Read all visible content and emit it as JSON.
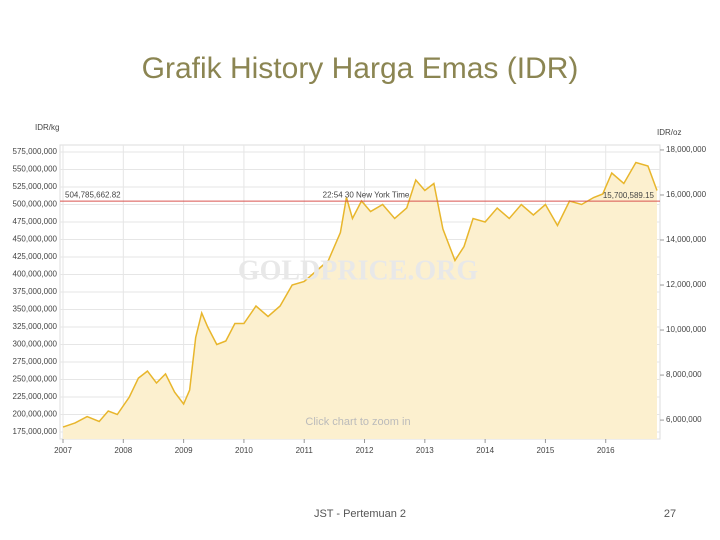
{
  "chart_data": {
    "type": "line",
    "title": "Grafik History Harga Emas (IDR)",
    "y_label": "IDR/kg",
    "y2_label": "IDR/oz",
    "watermark": "GOLDPRICE.ORG",
    "hint": "Click chart to zoom in",
    "current_price": {
      "value": 504785662.82,
      "label": "504,785,662.82"
    },
    "current_price_oz": {
      "value": 15700589.15,
      "label": "15,700,589.15"
    },
    "current_time": "22:54 30 New York Time",
    "current_color": "#d9534f",
    "x": [
      2007.0,
      2007.2,
      2007.4,
      2007.6,
      2007.75,
      2007.9,
      2008.1,
      2008.25,
      2008.4,
      2008.55,
      2008.7,
      2008.85,
      2009.0,
      2009.1,
      2009.2,
      2009.3,
      2009.4,
      2009.55,
      2009.7,
      2009.85,
      2010.0,
      2010.2,
      2010.4,
      2010.6,
      2010.8,
      2011.0,
      2011.2,
      2011.4,
      2011.6,
      2011.7,
      2011.8,
      2011.95,
      2012.1,
      2012.3,
      2012.5,
      2012.7,
      2012.85,
      2013.0,
      2013.15,
      2013.3,
      2013.5,
      2013.65,
      2013.8,
      2014.0,
      2014.2,
      2014.4,
      2014.6,
      2014.8,
      2015.0,
      2015.2,
      2015.4,
      2015.6,
      2015.8,
      2015.95,
      2016.1,
      2016.3,
      2016.5,
      2016.7,
      2016.85
    ],
    "series": [
      {
        "color": "#e8b62c",
        "fill": "#fcf0cf",
        "values": [
          182000000,
          188000000,
          197000000,
          190000000,
          205000000,
          200000000,
          225000000,
          252000000,
          262000000,
          245000000,
          258000000,
          232000000,
          215000000,
          235000000,
          310000000,
          345000000,
          325000000,
          300000000,
          305000000,
          330000000,
          330000000,
          355000000,
          340000000,
          355000000,
          385000000,
          390000000,
          405000000,
          420000000,
          460000000,
          510000000,
          480000000,
          505000000,
          490000000,
          500000000,
          480000000,
          495000000,
          535000000,
          520000000,
          530000000,
          465000000,
          420000000,
          440000000,
          480000000,
          475000000,
          495000000,
          480000000,
          500000000,
          485000000,
          500000000,
          470000000,
          505000000,
          500000000,
          510000000,
          515000000,
          545000000,
          530000000,
          560000000,
          555000000,
          520000000
        ]
      }
    ],
    "xlim": [
      2006.95,
      2016.9
    ],
    "xticks": [
      2007,
      2008,
      2009,
      2010,
      2011,
      2012,
      2013,
      2014,
      2015,
      2016
    ],
    "ylim": [
      165000000,
      585000000
    ],
    "yticks": [
      {
        "value": 175000000,
        "label": "175,000,000"
      },
      {
        "value": 200000000,
        "label": "200,000,000"
      },
      {
        "value": 225000000,
        "label": "225,000,000"
      },
      {
        "value": 250000000,
        "label": "250,000,000"
      },
      {
        "value": 275000000,
        "label": "275,000,000"
      },
      {
        "value": 300000000,
        "label": "300,000,000"
      },
      {
        "value": 325000000,
        "label": "325,000,000"
      },
      {
        "value": 350000000,
        "label": "350,000,000"
      },
      {
        "value": 375000000,
        "label": "375,000,000"
      },
      {
        "value": 400000000,
        "label": "400,000,000"
      },
      {
        "value": 425000000,
        "label": "425,000,000"
      },
      {
        "value": 450000000,
        "label": "450,000,000"
      },
      {
        "value": 475000000,
        "label": "475,000,000"
      },
      {
        "value": 500000000,
        "label": "500,000,000"
      },
      {
        "value": 525000000,
        "label": "525,000,000"
      },
      {
        "value": 550000000,
        "label": "550,000,000"
      },
      {
        "value": 575000000,
        "label": "575,000,000"
      }
    ],
    "y2lim": [
      5160000,
      18220000
    ],
    "y2ticks": [
      {
        "value": 6000000,
        "label": "6,000,000"
      },
      {
        "value": 8000000,
        "label": "8,000,000"
      },
      {
        "value": 10000000,
        "label": "10,000,000"
      },
      {
        "value": 12000000,
        "label": "12,000,000"
      },
      {
        "value": 14000000,
        "label": "14,000,000"
      },
      {
        "value": 16000000,
        "label": "16,000,000"
      },
      {
        "value": 18000000,
        "label": "18,000,000"
      }
    ],
    "grid": true
  },
  "footer": {
    "text": "JST - Pertemuan 2",
    "page": "27"
  }
}
